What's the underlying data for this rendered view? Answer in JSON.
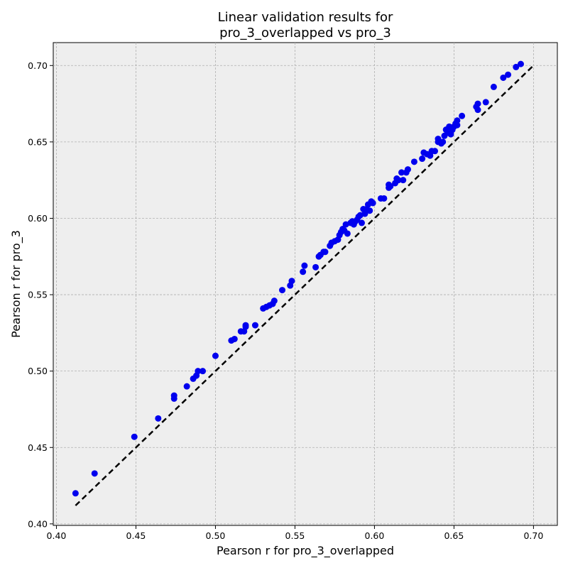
{
  "chart_data": {
    "type": "scatter",
    "title_lines": [
      "Linear validation results for",
      "pro_3_overlapped vs pro_3"
    ],
    "xlabel": "Pearson r for pro_3_overlapped",
    "ylabel": "Pearson r for pro_3",
    "xlim": [
      0.398,
      0.715
    ],
    "ylim": [
      0.399,
      0.715
    ],
    "x_ticks": [
      0.4,
      0.45,
      0.5,
      0.55,
      0.6,
      0.65,
      0.7
    ],
    "y_ticks": [
      0.4,
      0.45,
      0.5,
      0.55,
      0.6,
      0.65,
      0.7
    ],
    "x_tick_labels": [
      "0.40",
      "0.45",
      "0.50",
      "0.55",
      "0.60",
      "0.65",
      "0.70"
    ],
    "y_tick_labels": [
      "0.40",
      "0.45",
      "0.50",
      "0.55",
      "0.60",
      "0.65",
      "0.70"
    ],
    "grid": true,
    "background_color": "#eeeeee",
    "point_color": "#0000ee",
    "reference_line": {
      "style": "dashed",
      "color": "#000000",
      "x": [
        0.412,
        0.7
      ],
      "y": [
        0.412,
        0.7
      ]
    },
    "points": [
      [
        0.412,
        0.42
      ],
      [
        0.424,
        0.433
      ],
      [
        0.449,
        0.457
      ],
      [
        0.464,
        0.469
      ],
      [
        0.474,
        0.482
      ],
      [
        0.474,
        0.484
      ],
      [
        0.482,
        0.49
      ],
      [
        0.486,
        0.495
      ],
      [
        0.488,
        0.497
      ],
      [
        0.489,
        0.5
      ],
      [
        0.492,
        0.5
      ],
      [
        0.5,
        0.51
      ],
      [
        0.51,
        0.52
      ],
      [
        0.512,
        0.521
      ],
      [
        0.516,
        0.526
      ],
      [
        0.518,
        0.526
      ],
      [
        0.519,
        0.529
      ],
      [
        0.519,
        0.53
      ],
      [
        0.525,
        0.53
      ],
      [
        0.53,
        0.541
      ],
      [
        0.532,
        0.542
      ],
      [
        0.534,
        0.543
      ],
      [
        0.536,
        0.544
      ],
      [
        0.537,
        0.546
      ],
      [
        0.542,
        0.553
      ],
      [
        0.547,
        0.556
      ],
      [
        0.548,
        0.559
      ],
      [
        0.555,
        0.565
      ],
      [
        0.556,
        0.569
      ],
      [
        0.563,
        0.568
      ],
      [
        0.565,
        0.575
      ],
      [
        0.566,
        0.576
      ],
      [
        0.568,
        0.578
      ],
      [
        0.569,
        0.578
      ],
      [
        0.572,
        0.582
      ],
      [
        0.573,
        0.584
      ],
      [
        0.575,
        0.585
      ],
      [
        0.577,
        0.586
      ],
      [
        0.578,
        0.589
      ],
      [
        0.579,
        0.591
      ],
      [
        0.58,
        0.593
      ],
      [
        0.581,
        0.592
      ],
      [
        0.582,
        0.596
      ],
      [
        0.583,
        0.59
      ],
      [
        0.585,
        0.597
      ],
      [
        0.586,
        0.598
      ],
      [
        0.587,
        0.596
      ],
      [
        0.588,
        0.598
      ],
      [
        0.589,
        0.599
      ],
      [
        0.59,
        0.601
      ],
      [
        0.591,
        0.602
      ],
      [
        0.592,
        0.597
      ],
      [
        0.593,
        0.606
      ],
      [
        0.594,
        0.603
      ],
      [
        0.595,
        0.606
      ],
      [
        0.596,
        0.609
      ],
      [
        0.597,
        0.605
      ],
      [
        0.598,
        0.611
      ],
      [
        0.599,
        0.61
      ],
      [
        0.604,
        0.613
      ],
      [
        0.606,
        0.613
      ],
      [
        0.609,
        0.62
      ],
      [
        0.609,
        0.622
      ],
      [
        0.61,
        0.621
      ],
      [
        0.613,
        0.623
      ],
      [
        0.614,
        0.626
      ],
      [
        0.615,
        0.625
      ],
      [
        0.617,
        0.63
      ],
      [
        0.618,
        0.625
      ],
      [
        0.62,
        0.63
      ],
      [
        0.621,
        0.632
      ],
      [
        0.625,
        0.637
      ],
      [
        0.63,
        0.639
      ],
      [
        0.631,
        0.643
      ],
      [
        0.633,
        0.642
      ],
      [
        0.635,
        0.641
      ],
      [
        0.636,
        0.644
      ],
      [
        0.638,
        0.644
      ],
      [
        0.64,
        0.65
      ],
      [
        0.64,
        0.652
      ],
      [
        0.642,
        0.649
      ],
      [
        0.643,
        0.65
      ],
      [
        0.644,
        0.654
      ],
      [
        0.645,
        0.658
      ],
      [
        0.646,
        0.656
      ],
      [
        0.647,
        0.66
      ],
      [
        0.648,
        0.655
      ],
      [
        0.649,
        0.658
      ],
      [
        0.65,
        0.66
      ],
      [
        0.651,
        0.662
      ],
      [
        0.652,
        0.661
      ],
      [
        0.652,
        0.664
      ],
      [
        0.655,
        0.667
      ],
      [
        0.664,
        0.673
      ],
      [
        0.665,
        0.671
      ],
      [
        0.665,
        0.675
      ],
      [
        0.67,
        0.676
      ],
      [
        0.675,
        0.686
      ],
      [
        0.681,
        0.692
      ],
      [
        0.684,
        0.694
      ],
      [
        0.689,
        0.699
      ],
      [
        0.692,
        0.701
      ]
    ]
  }
}
